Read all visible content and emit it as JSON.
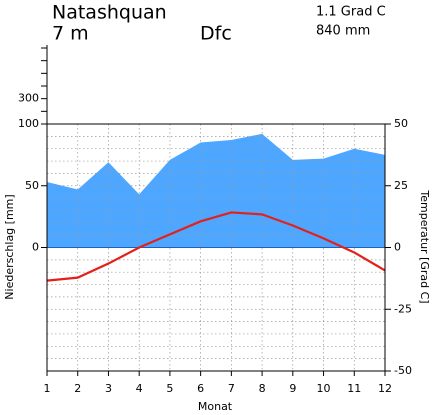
{
  "chart_data": {
    "type": "climate",
    "title": "Natashquan",
    "elevation": "7 m",
    "climate_class": "Dfc",
    "annual_temperature": "1.1 Grad C",
    "annual_precipitation": "840 mm",
    "xlabel": "Monat",
    "ylabel": "Niederschlag [mm]",
    "y2label": "Temperatur [Grad C]",
    "x": [
      1,
      2,
      3,
      4,
      5,
      6,
      7,
      8,
      9,
      10,
      11,
      12
    ],
    "xticks": [
      1,
      2,
      3,
      4,
      5,
      6,
      7,
      8,
      9,
      10,
      11,
      12
    ],
    "xlim": [
      1,
      12
    ],
    "series": [
      {
        "name": "Niederschlag",
        "color": "#4da6ff",
        "values": [
          53,
          47,
          69,
          43,
          71,
          85,
          87,
          92,
          71,
          72,
          80,
          75
        ]
      },
      {
        "name": "Temperatur",
        "color": "#e3201b",
        "axis": "y2",
        "values": [
          -13.4,
          -12.2,
          -6.5,
          0,
          5.3,
          10.6,
          14.2,
          13.4,
          8.9,
          3.7,
          -2,
          -9.3
        ]
      }
    ],
    "ylim": [
      -100,
      100
    ],
    "yticks": [
      0,
      50,
      100
    ],
    "ylim_upper": [
      100,
      700
    ],
    "yticks_upper": [
      200,
      300,
      400,
      500,
      600,
      700
    ],
    "yticks_upper_labeled": [
      300
    ],
    "y2lim": [
      -50,
      50
    ],
    "y2ticks": [
      -50,
      -25,
      0,
      25,
      50
    ],
    "grid": true
  }
}
